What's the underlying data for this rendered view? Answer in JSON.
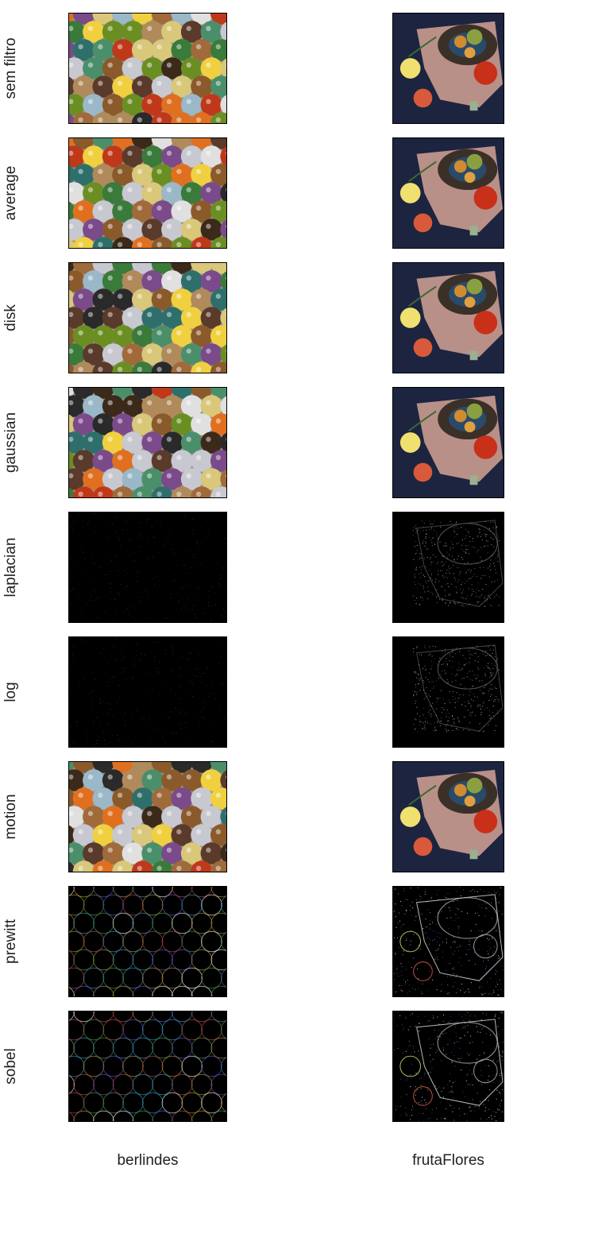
{
  "rows": [
    {
      "label": "sem filtro",
      "style": "normal"
    },
    {
      "label": "average",
      "style": "normal"
    },
    {
      "label": "disk",
      "style": "normal"
    },
    {
      "label": "gaussian",
      "style": "normal"
    },
    {
      "label": "laplacian",
      "style": "dark-faint"
    },
    {
      "label": "log",
      "style": "dark-faint"
    },
    {
      "label": "motion",
      "style": "normal"
    },
    {
      "label": "prewitt",
      "style": "edges"
    },
    {
      "label": "sobel",
      "style": "edges"
    }
  ],
  "columns": [
    {
      "label": "berlindes",
      "image": "marbles"
    },
    {
      "label": "frutaFlores",
      "image": "fruit-flowers"
    }
  ],
  "colors": {
    "panel_border": "#000000",
    "text": "#222222",
    "background": "#ffffff"
  }
}
